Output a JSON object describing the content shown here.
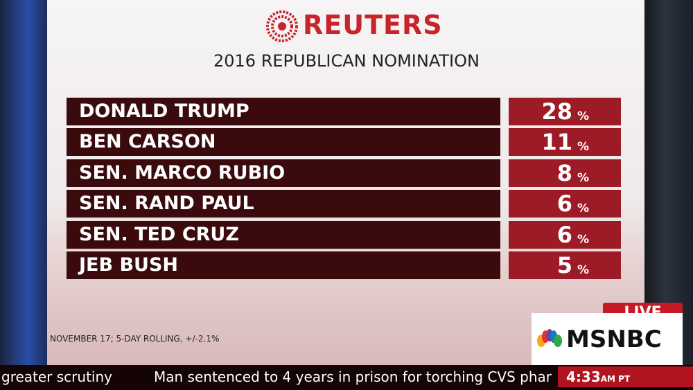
{
  "header": {
    "brand": "REUTERS",
    "subtitle": "2016 REPUBLICAN NOMINATION"
  },
  "poll": {
    "unit": "%",
    "rows": [
      {
        "name": "DONALD TRUMP",
        "value": 28
      },
      {
        "name": "BEN CARSON",
        "value": 11
      },
      {
        "name": "SEN. MARCO RUBIO",
        "value": 8
      },
      {
        "name": "SEN. RAND PAUL",
        "value": 6
      },
      {
        "name": "SEN. TED CRUZ",
        "value": 6
      },
      {
        "name": "JEB BUSH",
        "value": 5
      }
    ]
  },
  "footnote": "NOVEMBER 17; 5-DAY ROLLING, +/-2.1%",
  "network": {
    "live": "LIVE",
    "name": "MSNBC"
  },
  "ticker": {
    "previous": "greater scrutiny",
    "current": "Man sentenced to 4 years in prison for torching CVS phar",
    "time": "4:33",
    "zone": "AM PT"
  }
}
